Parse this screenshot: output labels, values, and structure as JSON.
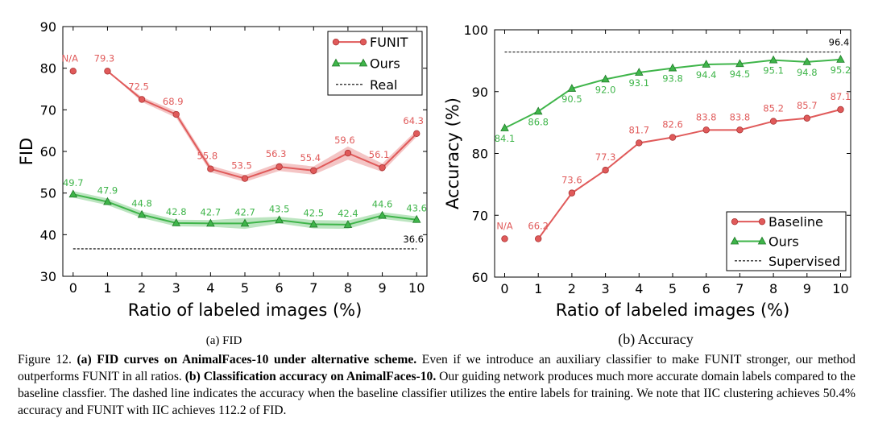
{
  "figure": {
    "caption": {
      "figure_label": "Figure 12.",
      "part_a_bold": "(a) FID curves on AnimalFaces-10 under alternative scheme.",
      "part_a_text": "Even if we introduce an auxiliary classifier to make FUNIT stronger, our method outperforms FUNIT in all ratios.",
      "part_b_bold": "(b) Classification accuracy on AnimalFaces-10.",
      "part_b_text": "Our guiding network produces much more accurate domain labels compared to the baseline classfier. The dashed line indicates the accuracy when the baseline classifier utilizes the entire labels for training. We note that IIC clustering achieves 50.4% accuracy and FUNIT with IIC achieves 112.2 of FID."
    }
  },
  "chart_data": [
    {
      "id": "fid",
      "type": "line",
      "subcaption": "(a) FID",
      "xlabel": "Ratio of labeled images (%)",
      "ylabel": "FID",
      "x": [
        0,
        1,
        2,
        3,
        4,
        5,
        6,
        7,
        8,
        9,
        10
      ],
      "xticks": [
        "0",
        "1",
        "2",
        "3",
        "4",
        "5",
        "6",
        "7",
        "8",
        "9",
        "10"
      ],
      "xlim": [
        -0.3,
        10.3
      ],
      "ylim": [
        30,
        90
      ],
      "yticks": [
        "30",
        "40",
        "50",
        "60",
        "70",
        "80",
        "90"
      ],
      "legend_position": "top-right",
      "series": [
        {
          "name": "FUNIT",
          "color": "#e05a5a",
          "marker": "circle",
          "values": [
            79.3,
            79.3,
            72.5,
            68.9,
            55.8,
            53.5,
            56.3,
            55.4,
            59.6,
            56.1,
            64.3
          ],
          "labels": [
            "N/A",
            "79.3",
            "72.5",
            "68.9",
            "55.8",
            "53.5",
            "56.3",
            "55.4",
            "59.6",
            "56.1",
            "64.3"
          ],
          "band": [
            0,
            0,
            0.6,
            0.8,
            0.8,
            0.8,
            1.0,
            1.0,
            1.6,
            1.0,
            0.8
          ],
          "connect_from": 1
        },
        {
          "name": "Ours",
          "color": "#3fb54a",
          "marker": "triangle",
          "values": [
            49.7,
            47.9,
            44.8,
            42.8,
            42.7,
            42.7,
            43.5,
            42.5,
            42.4,
            44.6,
            43.6
          ],
          "labels": [
            "49.7",
            "47.9",
            "44.8",
            "42.8",
            "42.7",
            "42.7",
            "43.5",
            "42.5",
            "42.4",
            "44.6",
            "43.6"
          ],
          "band": [
            0.8,
            0.8,
            0.8,
            0.8,
            0.8,
            1.3,
            0.8,
            1.0,
            1.0,
            0.8,
            0.8
          ],
          "connect_from": 0
        },
        {
          "name": "Real",
          "color": "#000000",
          "style": "dashed",
          "constant": 36.6,
          "label": "36.6"
        }
      ]
    },
    {
      "id": "acc",
      "type": "line",
      "subcaption": "(b) Accuracy",
      "xlabel": "Ratio of labeled images (%)",
      "ylabel": "Accuracy (%)",
      "x": [
        0,
        1,
        2,
        3,
        4,
        5,
        6,
        7,
        8,
        9,
        10
      ],
      "xticks": [
        "0",
        "1",
        "2",
        "3",
        "4",
        "5",
        "6",
        "7",
        "8",
        "9",
        "10"
      ],
      "xlim": [
        -0.3,
        10.3
      ],
      "ylim": [
        60,
        100
      ],
      "yticks": [
        "60",
        "70",
        "80",
        "90",
        "100"
      ],
      "legend_position": "bottom-right",
      "series": [
        {
          "name": "Baseline",
          "color": "#e05a5a",
          "marker": "circle",
          "values": [
            66.2,
            66.2,
            73.6,
            77.3,
            81.7,
            82.6,
            83.8,
            83.8,
            85.2,
            85.7,
            87.1
          ],
          "labels": [
            "N/A",
            "66.2",
            "73.6",
            "77.3",
            "81.7",
            "82.6",
            "83.8",
            "83.8",
            "85.2",
            "85.7",
            "87.1"
          ],
          "connect_from": 1
        },
        {
          "name": "Ours",
          "color": "#3fb54a",
          "marker": "triangle",
          "values": [
            84.1,
            86.8,
            90.5,
            92.0,
            93.1,
            93.8,
            94.4,
            94.5,
            95.1,
            94.8,
            95.2
          ],
          "labels": [
            "84.1",
            "86.8",
            "90.5",
            "92.0",
            "93.1",
            "93.8",
            "94.4",
            "94.5",
            "95.1",
            "94.8",
            "95.2"
          ],
          "connect_from": 0
        },
        {
          "name": "Supervised",
          "color": "#000000",
          "style": "dashed",
          "constant": 96.4,
          "label": "96.4"
        }
      ]
    }
  ]
}
